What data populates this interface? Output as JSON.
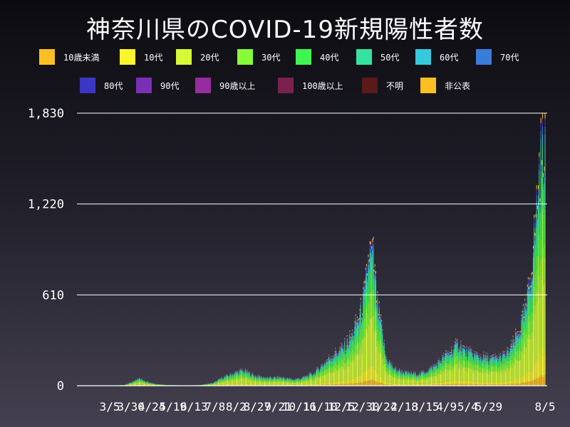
{
  "chart_data": {
    "type": "stacked-bar",
    "title": "神奈川県のCOVID-19新規陽性者数",
    "xlabel": "",
    "ylabel": "",
    "ylim": [
      0,
      1830
    ],
    "y_ticks": [
      {
        "value": 0,
        "label": "0"
      },
      {
        "value": 610,
        "label": "610"
      },
      {
        "value": 1220,
        "label": "1,220"
      },
      {
        "value": 1830,
        "label": "1,830"
      }
    ],
    "x_ticks": [
      {
        "index": 17,
        "label": "3/5"
      },
      {
        "index": 42,
        "label": "3/30"
      },
      {
        "index": 67,
        "label": "4/24"
      },
      {
        "index": 92,
        "label": "5/19"
      },
      {
        "index": 117,
        "label": "6/13"
      },
      {
        "index": 142,
        "label": "7/8"
      },
      {
        "index": 167,
        "label": "8/2"
      },
      {
        "index": 192,
        "label": "8/27"
      },
      {
        "index": 217,
        "label": "9/21"
      },
      {
        "index": 242,
        "label": "10/16"
      },
      {
        "index": 267,
        "label": "11/10"
      },
      {
        "index": 292,
        "label": "12/5"
      },
      {
        "index": 317,
        "label": "12/30"
      },
      {
        "index": 342,
        "label": "1/24"
      },
      {
        "index": 367,
        "label": "2/18"
      },
      {
        "index": 392,
        "label": "3/15"
      },
      {
        "index": 417,
        "label": "4/9"
      },
      {
        "index": 442,
        "label": "5/4"
      },
      {
        "index": 467,
        "label": "5/29"
      },
      {
        "index": 534,
        "label": "8/5"
      }
    ],
    "series": [
      {
        "name": "10歳未満",
        "color": "#fbbf24"
      },
      {
        "name": "10代",
        "color": "#f9f62e"
      },
      {
        "name": "20代",
        "color": "#d2fb36"
      },
      {
        "name": "30代",
        "color": "#86fb36"
      },
      {
        "name": "40代",
        "color": "#3ff651"
      },
      {
        "name": "50代",
        "color": "#36e2a1"
      },
      {
        "name": "60代",
        "color": "#38c8de"
      },
      {
        "name": "70代",
        "color": "#3a7cd8"
      },
      {
        "name": "80代",
        "color": "#3b36c6"
      },
      {
        "name": "90代",
        "color": "#7a30b4"
      },
      {
        "name": "90歳以上",
        "color": "#962ca0"
      },
      {
        "name": "100歳以上",
        "color": "#7a2150"
      },
      {
        "name": "不明",
        "color": "#5a1a1a"
      },
      {
        "name": "非公表",
        "color": "#fbbf24"
      }
    ],
    "series_shares": [
      0.04,
      0.1,
      0.34,
      0.18,
      0.14,
      0.1,
      0.04,
      0.03,
      0.02,
      0.006,
      0.002,
      0.001,
      0.001,
      0.02
    ],
    "num_days": 535,
    "total_keyframes": [
      [
        0,
        0
      ],
      [
        20,
        2
      ],
      [
        35,
        6
      ],
      [
        45,
        30
      ],
      [
        50,
        55
      ],
      [
        58,
        38
      ],
      [
        70,
        15
      ],
      [
        85,
        6
      ],
      [
        110,
        2
      ],
      [
        125,
        6
      ],
      [
        140,
        20
      ],
      [
        150,
        55
      ],
      [
        165,
        90
      ],
      [
        175,
        110
      ],
      [
        190,
        70
      ],
      [
        205,
        55
      ],
      [
        220,
        60
      ],
      [
        235,
        45
      ],
      [
        245,
        55
      ],
      [
        260,
        90
      ],
      [
        270,
        150
      ],
      [
        280,
        210
      ],
      [
        295,
        270
      ],
      [
        305,
        360
      ],
      [
        315,
        520
      ],
      [
        320,
        650
      ],
      [
        325,
        930
      ],
      [
        330,
        900
      ],
      [
        335,
        560
      ],
      [
        340,
        400
      ],
      [
        345,
        200
      ],
      [
        355,
        120
      ],
      [
        370,
        90
      ],
      [
        385,
        85
      ],
      [
        395,
        110
      ],
      [
        405,
        150
      ],
      [
        415,
        210
      ],
      [
        425,
        260
      ],
      [
        432,
        300
      ],
      [
        440,
        240
      ],
      [
        455,
        210
      ],
      [
        470,
        190
      ],
      [
        480,
        200
      ],
      [
        488,
        220
      ],
      [
        495,
        280
      ],
      [
        505,
        420
      ],
      [
        512,
        560
      ],
      [
        517,
        800
      ],
      [
        522,
        1100
      ],
      [
        527,
        1500
      ],
      [
        531,
        1700
      ],
      [
        534,
        1830
      ]
    ]
  }
}
